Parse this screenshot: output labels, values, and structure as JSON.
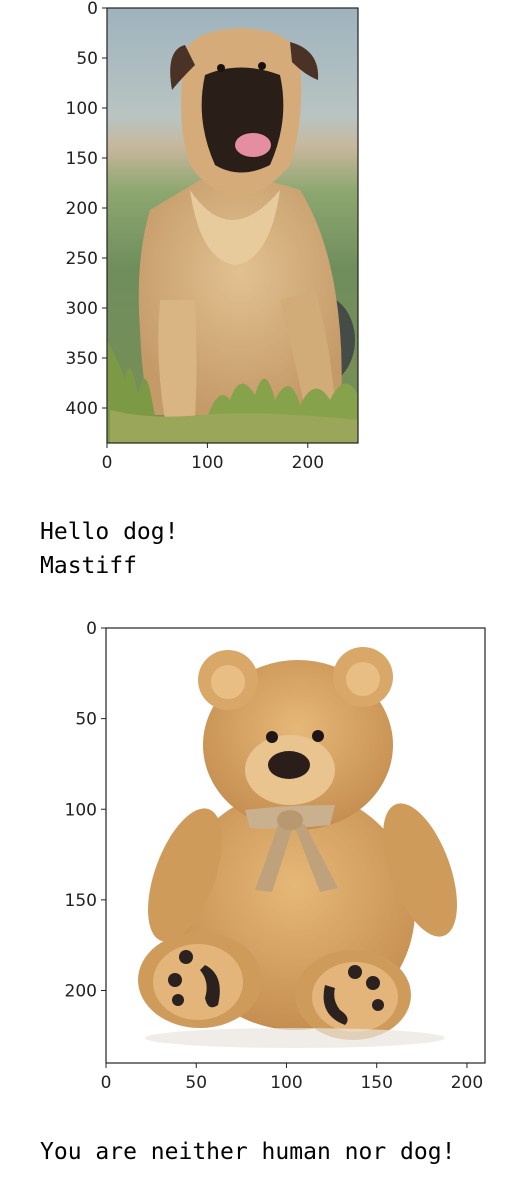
{
  "cells": [
    {
      "image": {
        "subject": "mastiff-dog-photo",
        "x_ticks": [
          "0",
          "100",
          "200"
        ],
        "y_ticks": [
          "0",
          "50",
          "100",
          "150",
          "200",
          "250",
          "300",
          "350",
          "400"
        ],
        "x_range": [
          0,
          250
        ],
        "y_range": [
          0,
          435
        ],
        "colors": {
          "sky": "#a8b8c2",
          "field": "#6f8e5c",
          "fur": "#d4ad7c",
          "muzzle": "#2a1e18",
          "grass": "#7c9a45"
        }
      },
      "output_lines": [
        "Hello dog!",
        "Mastiff"
      ]
    },
    {
      "image": {
        "subject": "teddy-bear-photo",
        "x_ticks": [
          "0",
          "50",
          "100",
          "150",
          "200"
        ],
        "y_ticks": [
          "0",
          "50",
          "100",
          "150",
          "200"
        ],
        "x_range": [
          0,
          210
        ],
        "y_range": [
          0,
          240
        ],
        "colors": {
          "background": "#ffffff",
          "fur": "#d9a868",
          "ribbon": "#c9b08e",
          "paw_pad": "#2b2220",
          "nose": "#2b1e1a"
        }
      },
      "output_lines": [
        "You are neither human nor dog!"
      ]
    }
  ]
}
